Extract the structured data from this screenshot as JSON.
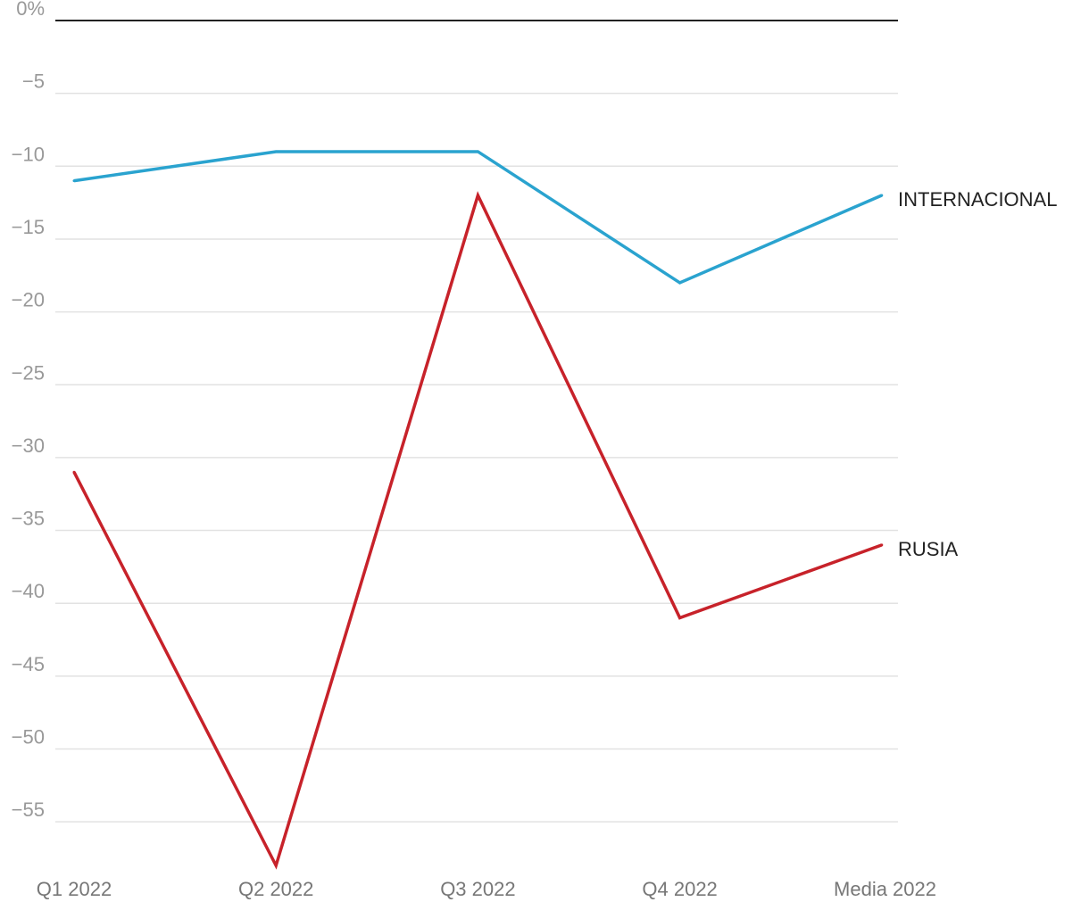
{
  "chart_data": {
    "type": "line",
    "title": "",
    "xlabel": "",
    "ylabel": "",
    "categories": [
      "Q1 2022",
      "Q2 2022",
      "Q3 2022",
      "Q4 2022",
      "Media 2022"
    ],
    "y_ticks": [
      0,
      -5,
      -10,
      -15,
      -20,
      -25,
      -30,
      -35,
      -40,
      -45,
      -50,
      -55
    ],
    "y_tick_labels": [
      "0%",
      "−5",
      "−10",
      "−15",
      "−20",
      "−25",
      "−30",
      "−35",
      "−40",
      "−45",
      "−50",
      "−55"
    ],
    "ylim": [
      -58,
      0
    ],
    "grid": true,
    "legend": "end-of-line labels",
    "series": [
      {
        "name": "INTERNACIONAL",
        "color": "#2aa3cf",
        "values": [
          -11,
          -9,
          -9,
          -18,
          -12
        ]
      },
      {
        "name": "RUSIA",
        "color": "#c7222a",
        "values": [
          -31,
          -58,
          -12,
          -41,
          -36
        ]
      }
    ]
  }
}
